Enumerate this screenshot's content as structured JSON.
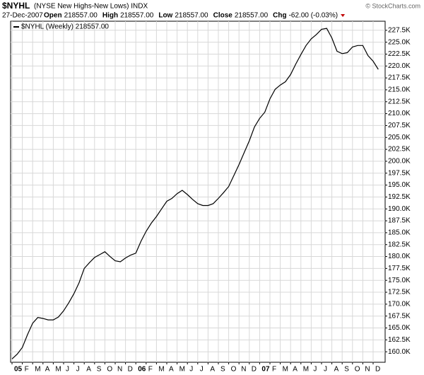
{
  "header": {
    "symbol": "$NYHL",
    "name": "(NYSE New Highs-New Lows) INDX",
    "date": "27-Dec-2007",
    "stats": [
      {
        "label": "Open",
        "value": "218557.00"
      },
      {
        "label": "High",
        "value": "218557.00"
      },
      {
        "label": "Low",
        "value": "218557.00"
      },
      {
        "label": "Close",
        "value": "218557.00"
      },
      {
        "label": "Chg",
        "value": "-62.00 (-0.03%)"
      }
    ],
    "credit": "© StockCharts.com"
  },
  "chart_data": {
    "type": "line",
    "categories": [
      "05",
      null,
      "F",
      null,
      "M",
      null,
      "A",
      null,
      "M",
      null,
      "J",
      null,
      "J",
      null,
      "A",
      null,
      "S",
      null,
      "O",
      null,
      "N",
      null,
      "D",
      null,
      "06",
      null,
      "F",
      null,
      "M",
      null,
      "A",
      null,
      "M",
      null,
      "J",
      null,
      "J",
      null,
      "A",
      null,
      "S",
      null,
      "O",
      null,
      "N",
      null,
      "D",
      null,
      "07",
      null,
      "F",
      null,
      "M",
      null,
      "A",
      null,
      "M",
      null,
      "J",
      null,
      "J",
      null,
      "A",
      null,
      "S",
      null,
      "O",
      null,
      "N",
      null,
      "D",
      null
    ],
    "series": [
      {
        "name": "$NYHL (Weekly) 218557.00",
        "color": "#000000",
        "values": [
          158500,
          159500,
          160900,
          163600,
          166000,
          167200,
          167000,
          166700,
          166700,
          167300,
          168600,
          170300,
          172200,
          174500,
          177500,
          178700,
          179800,
          180400,
          181000,
          180000,
          179100,
          178900,
          179700,
          180300,
          180700,
          183200,
          185300,
          187000,
          188400,
          190000,
          191600,
          192200,
          193200,
          193900,
          193000,
          192000,
          191100,
          190700,
          190700,
          191100,
          192200,
          193400,
          194700,
          197000,
          199300,
          201800,
          204300,
          207200,
          209000,
          210300,
          213100,
          215100,
          216000,
          216700,
          218200,
          220400,
          222400,
          224300,
          225700,
          226600,
          227700,
          227900,
          225900,
          223100,
          222600,
          222800,
          224000,
          224300,
          224300,
          222200,
          221000,
          219300
        ]
      }
    ],
    "ylim": [
      157800,
      229400
    ],
    "yticks": [
      {
        "value": 160000,
        "label": "160.0K"
      },
      {
        "value": 162500,
        "label": "162.5K"
      },
      {
        "value": 165000,
        "label": "165.0K"
      },
      {
        "value": 167500,
        "label": "167.5K"
      },
      {
        "value": 170000,
        "label": "170.0K"
      },
      {
        "value": 172500,
        "label": "172.5K"
      },
      {
        "value": 175000,
        "label": "175.0K"
      },
      {
        "value": 177500,
        "label": "177.5K"
      },
      {
        "value": 180000,
        "label": "180.0K"
      },
      {
        "value": 182500,
        "label": "182.5K"
      },
      {
        "value": 185000,
        "label": "185.0K"
      },
      {
        "value": 187500,
        "label": "187.5K"
      },
      {
        "value": 190000,
        "label": "190.0K"
      },
      {
        "value": 192500,
        "label": "192.5K"
      },
      {
        "value": 195000,
        "label": "195.0K"
      },
      {
        "value": 197500,
        "label": "197.5K"
      },
      {
        "value": 200000,
        "label": "200.0K"
      },
      {
        "value": 202500,
        "label": "202.5K"
      },
      {
        "value": 205000,
        "label": "205.0K"
      },
      {
        "value": 207500,
        "label": "207.5K"
      },
      {
        "value": 210000,
        "label": "210.0K"
      },
      {
        "value": 212500,
        "label": "212.5K"
      },
      {
        "value": 215000,
        "label": "215.0K"
      },
      {
        "value": 217500,
        "label": "217.5K"
      },
      {
        "value": 220000,
        "label": "220.0K"
      },
      {
        "value": 222500,
        "label": "222.5K"
      },
      {
        "value": 225000,
        "label": "225.0K"
      },
      {
        "value": 227500,
        "label": "227.5K"
      }
    ],
    "grid": true
  }
}
